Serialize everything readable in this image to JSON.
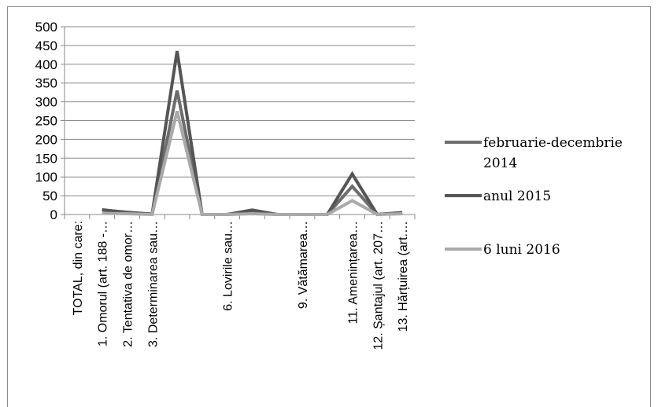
{
  "chart_data": {
    "type": "line",
    "title": "",
    "xlabel": "",
    "ylabel": "",
    "ylim": [
      0,
      500
    ],
    "yticks": [
      "500",
      "450",
      "400",
      "350",
      "300",
      "250",
      "200",
      "150",
      "100",
      "50",
      "0"
    ],
    "categories": [
      "TOTAL, din care:",
      "1. Omorul (art. 188 -…",
      "2. Tentativa de omor…",
      "3. Determinarea sau…",
      "",
      "",
      "6. Lovirile sau…",
      "",
      "",
      "9. Vătămarea…",
      "",
      "11. Amenințarea…",
      "12. Șantajul (art. 207…",
      "13. Hărțuirea (art.…"
    ],
    "series": [
      {
        "name": "februarie-decembrie 2014",
        "color": "#6d6d6d",
        "values": [
          null,
          13,
          5,
          1,
          330,
          0,
          0,
          5,
          0,
          0,
          0,
          75,
          0,
          5
        ]
      },
      {
        "name": "anul 2015",
        "color": "#555555",
        "values": [
          null,
          12,
          6,
          1,
          435,
          0,
          0,
          12,
          0,
          0,
          0,
          108,
          0,
          5
        ]
      },
      {
        "name": "6 luni 2016",
        "color": "#a9a9a9",
        "values": [
          null,
          3,
          2,
          0,
          275,
          0,
          0,
          2,
          0,
          0,
          0,
          37,
          0,
          2
        ]
      }
    ],
    "grid": true,
    "legend_position": "right"
  }
}
